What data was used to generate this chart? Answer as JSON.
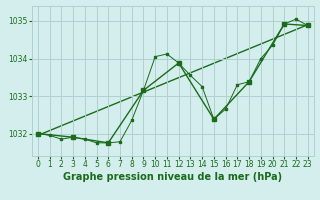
{
  "title": "Graphe pression niveau de la mer (hPa)",
  "background_color": "#d4eeee",
  "grid_color": "#b0d0d0",
  "line_color": "#1a6b1a",
  "xlim": [
    -0.5,
    23.5
  ],
  "ylim": [
    1031.4,
    1035.4
  ],
  "yticks": [
    1032,
    1033,
    1034,
    1035
  ],
  "xticks": [
    0,
    1,
    2,
    3,
    4,
    5,
    6,
    7,
    8,
    9,
    10,
    11,
    12,
    13,
    14,
    15,
    16,
    17,
    18,
    19,
    20,
    21,
    22,
    23
  ],
  "series1": {
    "x": [
      0,
      1,
      2,
      3,
      4,
      5,
      6,
      7,
      8,
      9,
      10,
      11,
      12,
      13,
      14,
      15,
      16,
      17,
      18,
      19,
      20,
      21,
      22,
      23
    ],
    "y": [
      1032.0,
      1031.95,
      1031.85,
      1031.9,
      1031.85,
      1031.75,
      1031.75,
      1031.78,
      1032.35,
      1033.15,
      1034.05,
      1034.12,
      1033.88,
      1033.55,
      1033.25,
      1032.38,
      1032.65,
      1033.3,
      1033.38,
      1034.0,
      1034.35,
      1034.92,
      1035.05,
      1034.88
    ]
  },
  "series2": {
    "x": [
      0,
      3,
      6,
      9,
      12,
      15,
      18,
      21,
      23
    ],
    "y": [
      1032.0,
      1031.9,
      1031.75,
      1033.15,
      1033.88,
      1032.38,
      1033.38,
      1034.92,
      1034.88
    ]
  },
  "trend": {
    "x": [
      0,
      23
    ],
    "y": [
      1031.95,
      1034.9
    ]
  },
  "tick_fontsize": 5.5,
  "title_fontsize": 7,
  "title_fontweight": "bold"
}
